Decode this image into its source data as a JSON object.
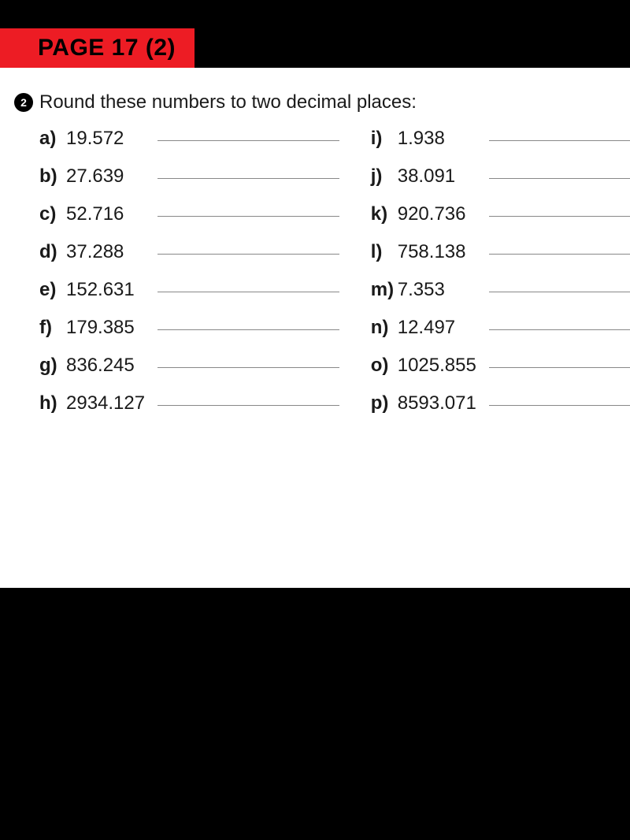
{
  "banner": {
    "title": "PAGE 17 (2)"
  },
  "question": {
    "badge": "2",
    "instruction": "Round these numbers to two decimal places:"
  },
  "left_items": [
    {
      "label": "a)",
      "value": "19.572"
    },
    {
      "label": "b)",
      "value": "27.639"
    },
    {
      "label": "c)",
      "value": "52.716"
    },
    {
      "label": "d)",
      "value": "37.288"
    },
    {
      "label": "e)",
      "value": "152.631"
    },
    {
      "label": "f)",
      "value": "179.385"
    },
    {
      "label": "g)",
      "value": "836.245"
    },
    {
      "label": "h)",
      "value": "2934.127"
    }
  ],
  "right_items": [
    {
      "label": "i)",
      "value": "1.938"
    },
    {
      "label": "j)",
      "value": "38.091"
    },
    {
      "label": "k)",
      "value": "920.736"
    },
    {
      "label": "l)",
      "value": "758.138"
    },
    {
      "label": "m)",
      "value": "7.353"
    },
    {
      "label": "n)",
      "value": "12.497"
    },
    {
      "label": "o)",
      "value": "1025.855"
    },
    {
      "label": "p)",
      "value": "8593.071"
    }
  ],
  "colors": {
    "banner_bg": "#ed1c24",
    "page_bg": "#000000",
    "content_bg": "#ffffff",
    "text": "#1a1a1a",
    "line": "#888888"
  }
}
